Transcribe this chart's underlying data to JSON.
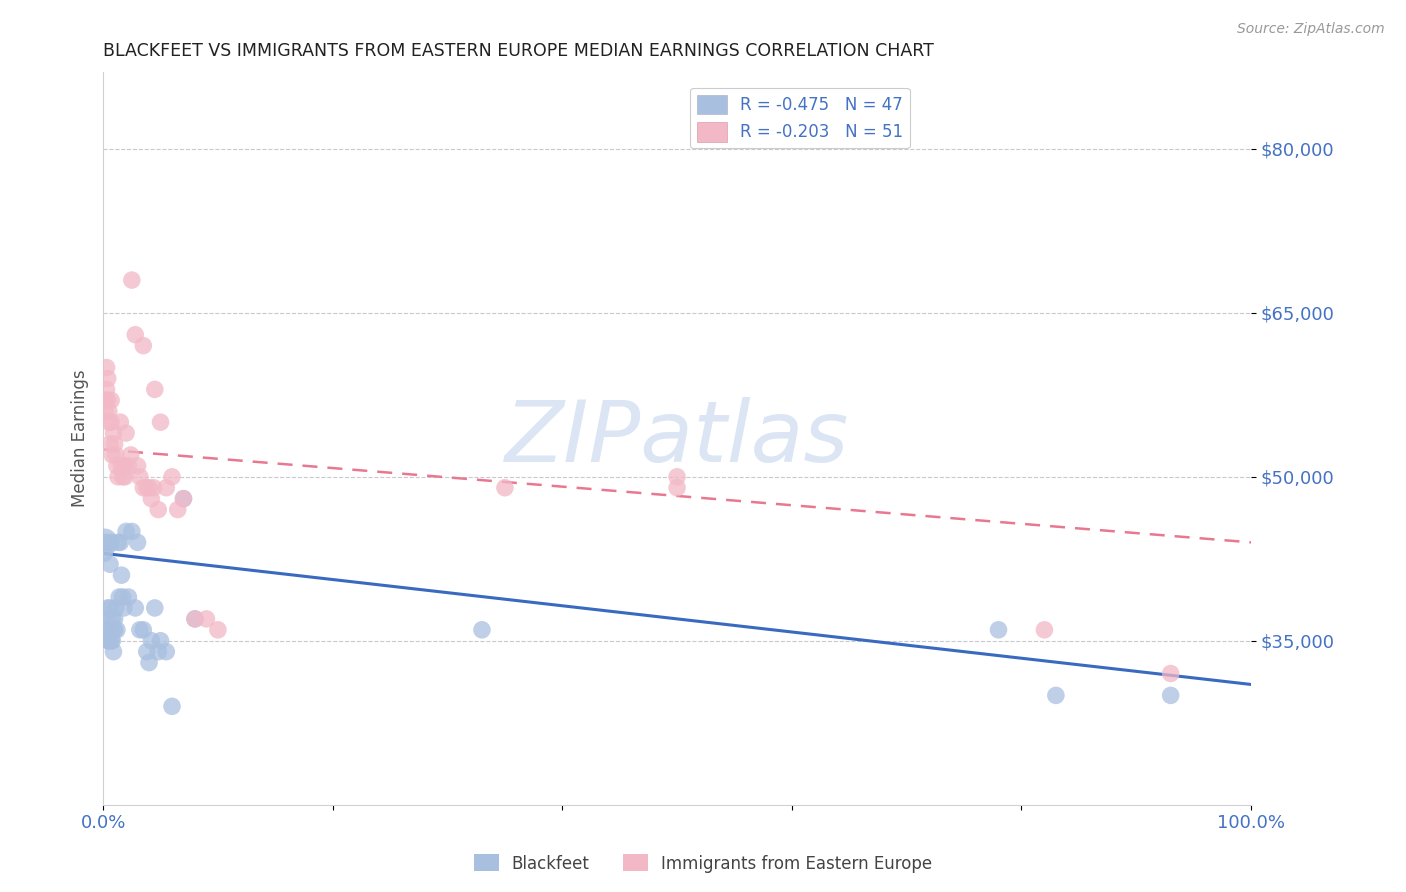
{
  "title": "BLACKFEET VS IMMIGRANTS FROM EASTERN EUROPE MEDIAN EARNINGS CORRELATION CHART",
  "source": "Source: ZipAtlas.com",
  "ylabel": "Median Earnings",
  "xlim": [
    0,
    1.0
  ],
  "ylim": [
    20000,
    87000
  ],
  "yticks": [
    35000,
    50000,
    65000,
    80000
  ],
  "ytick_labels": [
    "$35,000",
    "$50,000",
    "$65,000",
    "$80,000"
  ],
  "xticks": [
    0.0,
    0.2,
    0.4,
    0.6,
    0.8,
    1.0
  ],
  "xtick_labels": [
    "0.0%",
    "",
    "",
    "",
    "",
    "100.0%"
  ],
  "watermark": "ZIPatlas",
  "legend_entry1": "R = -0.475   N = 47",
  "legend_entry2": "R = -0.203   N = 51",
  "label1": "Blackfeet",
  "label2": "Immigrants from Eastern Europe",
  "color_blue": "#a8bfdf",
  "color_pink": "#f2b8c6",
  "line_color_blue": "#3a6abf",
  "line_color_pink": "#e87890",
  "title_color": "#222222",
  "axis_color": "#4472c4",
  "grid_color": "#c8c8d0",
  "blackfeet_x": [
    0.001,
    0.002,
    0.003,
    0.003,
    0.004,
    0.004,
    0.005,
    0.005,
    0.006,
    0.006,
    0.007,
    0.007,
    0.008,
    0.008,
    0.009,
    0.009,
    0.01,
    0.01,
    0.011,
    0.012,
    0.013,
    0.014,
    0.015,
    0.016,
    0.017,
    0.018,
    0.02,
    0.022,
    0.025,
    0.028,
    0.03,
    0.032,
    0.035,
    0.038,
    0.04,
    0.042,
    0.045,
    0.048,
    0.05,
    0.055,
    0.06,
    0.07,
    0.08,
    0.33,
    0.78,
    0.83,
    0.93
  ],
  "blackfeet_y": [
    43000,
    44000,
    37000,
    36000,
    38000,
    35000,
    36000,
    35000,
    38000,
    42000,
    44000,
    35000,
    37000,
    35000,
    36000,
    34000,
    37000,
    36000,
    38000,
    36000,
    44000,
    39000,
    44000,
    41000,
    39000,
    38000,
    45000,
    39000,
    45000,
    38000,
    44000,
    36000,
    36000,
    34000,
    33000,
    35000,
    38000,
    34000,
    35000,
    34000,
    29000,
    48000,
    37000,
    36000,
    36000,
    30000,
    30000
  ],
  "ee_x": [
    0.001,
    0.002,
    0.002,
    0.003,
    0.003,
    0.004,
    0.004,
    0.005,
    0.005,
    0.006,
    0.007,
    0.007,
    0.008,
    0.009,
    0.01,
    0.011,
    0.012,
    0.013,
    0.015,
    0.016,
    0.017,
    0.018,
    0.019,
    0.02,
    0.022,
    0.024,
    0.025,
    0.028,
    0.03,
    0.032,
    0.035,
    0.035,
    0.038,
    0.04,
    0.042,
    0.044,
    0.045,
    0.048,
    0.05,
    0.055,
    0.06,
    0.065,
    0.07,
    0.08,
    0.09,
    0.1,
    0.35,
    0.5,
    0.5,
    0.82,
    0.93
  ],
  "ee_y": [
    57000,
    57000,
    56000,
    60000,
    58000,
    59000,
    57000,
    56000,
    55000,
    53000,
    57000,
    55000,
    52000,
    54000,
    53000,
    52000,
    51000,
    50000,
    55000,
    51000,
    50000,
    51000,
    50000,
    54000,
    51000,
    52000,
    68000,
    63000,
    51000,
    50000,
    49000,
    62000,
    49000,
    49000,
    48000,
    49000,
    58000,
    47000,
    55000,
    49000,
    50000,
    47000,
    48000,
    37000,
    37000,
    36000,
    49000,
    49000,
    50000,
    36000,
    32000
  ],
  "bf_trend_x0": 0.0,
  "bf_trend_y0": 43000,
  "bf_trend_x1": 1.0,
  "bf_trend_y1": 31000,
  "ee_trend_x0": 0.0,
  "ee_trend_y0": 52500,
  "ee_trend_x1": 1.0,
  "ee_trend_y1": 44000
}
